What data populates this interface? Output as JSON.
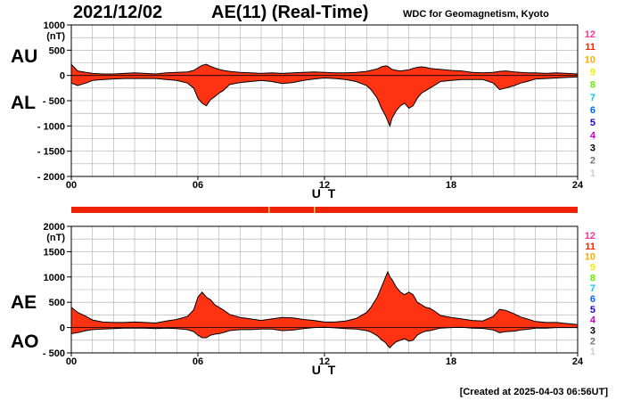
{
  "header": {
    "date": "2021/12/02",
    "title": "AE(11) (Real-Time)",
    "credit": "WDC for Geomagnetism, Kyoto"
  },
  "footer": {
    "created": "[Created at 2025-04-03 06:56UT]"
  },
  "legend_numbers": [
    {
      "label": "12",
      "color": "#ff3399"
    },
    {
      "label": "11",
      "color": "#ff2200"
    },
    {
      "label": "10",
      "color": "#ffaa00"
    },
    {
      "label": "9",
      "color": "#eeee00"
    },
    {
      "label": "8",
      "color": "#66ee00"
    },
    {
      "label": "7",
      "color": "#00ccee"
    },
    {
      "label": "6",
      "color": "#0066ff"
    },
    {
      "label": "5",
      "color": "#2200cc"
    },
    {
      "label": "4",
      "color": "#cc00cc"
    },
    {
      "label": "3",
      "color": "#000000"
    },
    {
      "label": "2",
      "color": "#777777"
    },
    {
      "label": "1",
      "color": "#cccccc"
    }
  ],
  "colors": {
    "fill": "#ff3311",
    "bar": "#ee2200",
    "bar_gap": "#ffcc66",
    "grid": "#aaaaaa"
  },
  "chart_data": [
    {
      "type": "area",
      "panel": "AU/AL",
      "series_labels": [
        "AU",
        "AL"
      ],
      "xlabel": "U T",
      "ylabel_unit": "(nT)",
      "x_ticks": [
        "00",
        "06",
        "12",
        "18",
        "24"
      ],
      "y_ticks": [
        "1000",
        "500",
        "0",
        "- 500",
        "- 1000",
        "- 1500",
        "- 2000"
      ],
      "xlim": [
        0,
        24
      ],
      "ylim": [
        -2000,
        1000
      ],
      "grid": true,
      "hours": [
        0,
        0.3,
        0.7,
        1,
        1.5,
        2,
        2.5,
        3,
        3.5,
        4,
        4.5,
        5,
        5.5,
        5.8,
        6,
        6.2,
        6.4,
        6.6,
        6.8,
        7,
        7.2,
        7.5,
        8,
        8.5,
        9,
        9.5,
        10,
        10.5,
        11,
        11.5,
        12,
        12.5,
        13,
        13.5,
        14,
        14.2,
        14.5,
        14.7,
        14.9,
        15,
        15.1,
        15.2,
        15.4,
        15.6,
        15.8,
        16,
        16.2,
        16.4,
        16.6,
        16.8,
        17,
        17.2,
        17.5,
        18,
        18.5,
        19,
        19.5,
        20,
        20.3,
        20.6,
        21,
        21.3,
        21.6,
        22,
        22.5,
        23,
        23.5,
        24
      ],
      "au": [
        220,
        90,
        60,
        40,
        30,
        30,
        40,
        50,
        40,
        30,
        50,
        60,
        70,
        100,
        150,
        200,
        220,
        180,
        150,
        120,
        100,
        80,
        60,
        50,
        40,
        50,
        40,
        50,
        60,
        70,
        60,
        50,
        50,
        60,
        80,
        100,
        130,
        170,
        190,
        180,
        150,
        120,
        100,
        90,
        100,
        110,
        140,
        160,
        170,
        160,
        140,
        130,
        120,
        100,
        90,
        60,
        50,
        60,
        80,
        90,
        70,
        60,
        50,
        50,
        40,
        50,
        40,
        30
      ],
      "al": [
        -150,
        -200,
        -150,
        -100,
        -80,
        -70,
        -60,
        -60,
        -60,
        -60,
        -80,
        -100,
        -150,
        -250,
        -450,
        -550,
        -600,
        -480,
        -420,
        -350,
        -300,
        -180,
        -140,
        -120,
        -100,
        -120,
        -160,
        -140,
        -100,
        -70,
        -50,
        -60,
        -80,
        -120,
        -200,
        -280,
        -450,
        -650,
        -800,
        -900,
        -1000,
        -850,
        -700,
        -600,
        -550,
        -650,
        -600,
        -450,
        -350,
        -300,
        -250,
        -200,
        -120,
        -100,
        -80,
        -80,
        -80,
        -150,
        -280,
        -250,
        -200,
        -150,
        -120,
        -70,
        -60,
        -50,
        -40,
        -30
      ]
    },
    {
      "type": "area",
      "panel": "AE/AO",
      "series_labels": [
        "AE",
        "AO"
      ],
      "xlabel": "U T",
      "ylabel_unit": "(nT)",
      "x_ticks": [
        "00",
        "06",
        "12",
        "18",
        "24"
      ],
      "y_ticks": [
        "2000",
        "1500",
        "1000",
        "500",
        "0",
        "- 500"
      ],
      "xlim": [
        0,
        24
      ],
      "ylim": [
        -500,
        2000
      ],
      "grid": true,
      "hours": [
        0,
        0.3,
        0.7,
        1,
        1.5,
        2,
        2.5,
        3,
        3.5,
        4,
        4.5,
        5,
        5.5,
        5.8,
        6,
        6.2,
        6.4,
        6.6,
        6.8,
        7,
        7.2,
        7.5,
        8,
        8.5,
        9,
        9.5,
        10,
        10.5,
        11,
        11.5,
        12,
        12.5,
        13,
        13.5,
        14,
        14.2,
        14.5,
        14.7,
        14.9,
        15,
        15.1,
        15.2,
        15.4,
        15.6,
        15.8,
        16,
        16.2,
        16.4,
        16.6,
        16.8,
        17,
        17.2,
        17.5,
        18,
        18.5,
        19,
        19.5,
        20,
        20.3,
        20.6,
        21,
        21.3,
        21.6,
        22,
        22.5,
        23,
        23.5,
        24
      ],
      "ae": [
        400,
        300,
        220,
        150,
        110,
        100,
        100,
        110,
        100,
        90,
        130,
        160,
        220,
        350,
        600,
        700,
        600,
        550,
        450,
        400,
        350,
        260,
        200,
        170,
        140,
        170,
        200,
        190,
        160,
        140,
        110,
        110,
        130,
        180,
        300,
        400,
        600,
        800,
        1000,
        1100,
        1000,
        950,
        800,
        700,
        650,
        700,
        650,
        500,
        450,
        400,
        380,
        330,
        240,
        200,
        170,
        140,
        130,
        220,
        360,
        340,
        270,
        210,
        170,
        120,
        100,
        100,
        80,
        60
      ],
      "ao": [
        -120,
        -100,
        -60,
        -40,
        -30,
        -20,
        -10,
        -10,
        -10,
        -20,
        -10,
        -20,
        -40,
        -80,
        -150,
        -200,
        -200,
        -150,
        -130,
        -120,
        -100,
        -60,
        -40,
        -40,
        -30,
        -30,
        -60,
        -50,
        -20,
        0,
        5,
        -5,
        -20,
        -30,
        -60,
        -90,
        -160,
        -240,
        -300,
        -360,
        -400,
        -350,
        -280,
        -250,
        -220,
        -270,
        -250,
        -150,
        -100,
        -70,
        -60,
        -40,
        -10,
        0,
        5,
        -10,
        -15,
        -45,
        -100,
        -80,
        -70,
        -45,
        -35,
        -10,
        -10,
        0,
        0,
        0
      ]
    }
  ]
}
